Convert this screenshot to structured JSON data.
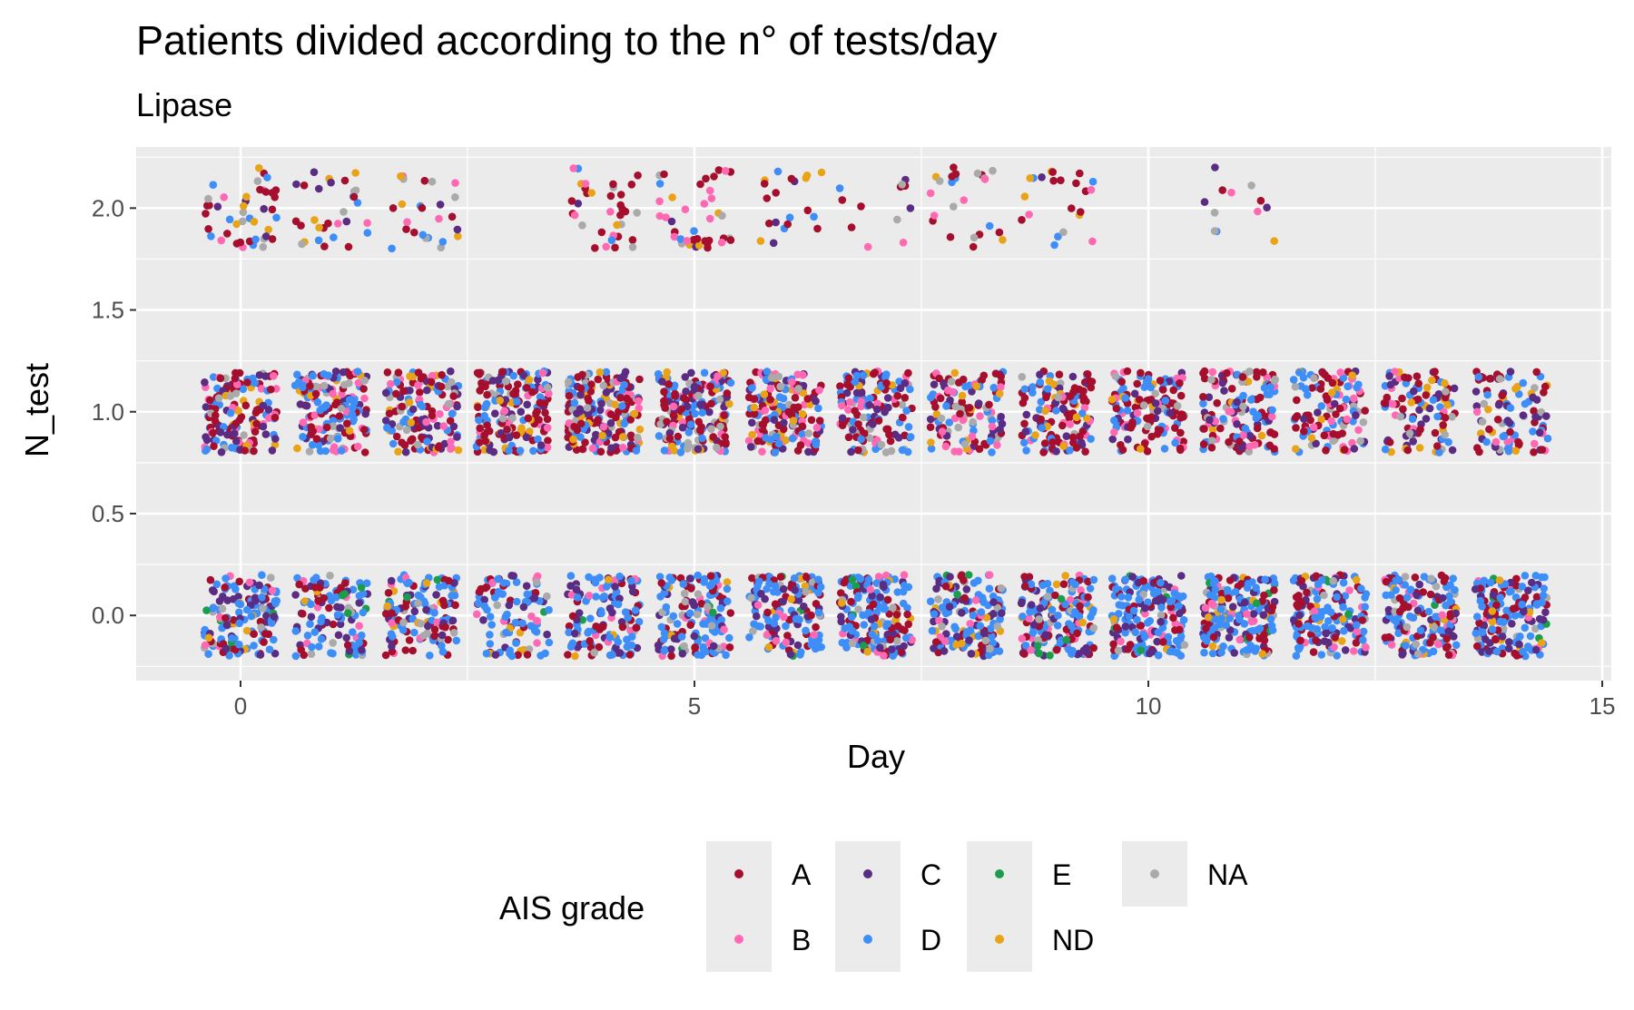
{
  "chart_data": {
    "type": "scatter",
    "title": "Patients divided according to the n° of tests/day",
    "subtitle": "Lipase",
    "xlabel": "Day",
    "ylabel": "N_test",
    "xlim": [
      -1.15,
      15.1
    ],
    "ylim": [
      -0.32,
      2.3
    ],
    "x_ticks": [
      0,
      5,
      10,
      15
    ],
    "x_tick_labels": [
      "0",
      "5",
      "10",
      "15"
    ],
    "y_ticks": [
      0.0,
      0.5,
      1.0,
      1.5,
      2.0
    ],
    "y_tick_labels": [
      "0.0",
      "0.5",
      "1.0",
      "1.5",
      "2.0"
    ],
    "grid": true,
    "jitter": {
      "x": 0.4,
      "y": 0.2
    },
    "legend": {
      "title": "AIS grade",
      "position": "bottom",
      "entries": [
        {
          "label": "A",
          "color": "#A50F2D"
        },
        {
          "label": "B",
          "color": "#FF69B4"
        },
        {
          "label": "C",
          "color": "#5B2C83"
        },
        {
          "label": "D",
          "color": "#3D8EF8"
        },
        {
          "label": "E",
          "color": "#1B9E4B"
        },
        {
          "label": "ND",
          "color": "#E8A317"
        },
        {
          "label": "NA",
          "color": "#AAAAAA"
        }
      ]
    },
    "series_summary": [
      {
        "n_test": 0,
        "days": [
          0,
          1,
          2,
          3,
          4,
          5,
          6,
          7,
          8,
          9,
          10,
          11,
          12,
          13,
          14
        ],
        "approx_points_per_day": [
          150,
          110,
          130,
          100,
          130,
          150,
          150,
          170,
          150,
          170,
          170,
          180,
          160,
          170,
          170
        ]
      },
      {
        "n_test": 1,
        "days": [
          0,
          1,
          2,
          3,
          4,
          5,
          6,
          7,
          8,
          9,
          10,
          11,
          12,
          13,
          14
        ],
        "approx_points_per_day": [
          150,
          160,
          140,
          180,
          190,
          180,
          180,
          140,
          120,
          130,
          140,
          140,
          120,
          100,
          100
        ]
      },
      {
        "n_test": 2,
        "days": [
          0,
          1,
          2,
          4,
          5,
          6,
          7,
          8,
          9,
          11
        ],
        "approx_points_per_day": [
          45,
          30,
          25,
          35,
          40,
          20,
          12,
          25,
          22,
          12
        ]
      }
    ]
  }
}
